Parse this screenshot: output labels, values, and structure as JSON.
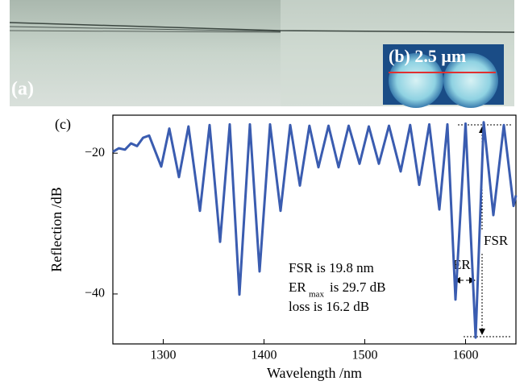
{
  "panels": {
    "a": "(a)",
    "b": "(b) 2.5 μm"
  },
  "chart_data": {
    "type": "line",
    "panel_label": "(c)",
    "x_label": "Wavelength /nm",
    "y_label": "Reflection /dB",
    "x": [
      1250,
      1256,
      1262,
      1268,
      1274,
      1280,
      1286,
      1298,
      1306,
      1315.6,
      1325,
      1336.4,
      1346,
      1356.4,
      1366,
      1375.6,
      1386,
      1395.6,
      1406,
      1416.4,
      1426,
      1435.6,
      1445,
      1454,
      1464,
      1474,
      1484,
      1494.8,
      1504,
      1514,
      1524,
      1535.6,
      1545,
      1554,
      1564,
      1574,
      1582,
      1590,
      1600,
      1610,
      1618,
      1627.6,
      1638,
      1647.6,
      1650
    ],
    "values": [
      -19.8,
      -19.3,
      -19.5,
      -18.6,
      -19.0,
      -17.8,
      -17.5,
      -21.9,
      -16.5,
      -23.4,
      -16.2,
      -28.2,
      -16.0,
      -32.6,
      -15.9,
      -40.1,
      -15.9,
      -36.8,
      -15.9,
      -28.2,
      -16.0,
      -24.6,
      -16.1,
      -22.0,
      -16.1,
      -22.0,
      -16.1,
      -21.5,
      -16.2,
      -21.5,
      -16.1,
      -22.6,
      -16.0,
      -24.5,
      -15.9,
      -28.0,
      -15.9,
      -40.8,
      -15.8,
      -46.2,
      -15.6,
      -28.8,
      -16.0,
      -27.5,
      -26.0
    ],
    "color": "#3a5cb0",
    "xlim": [
      1250,
      1650
    ],
    "xticks": [
      1300,
      1400,
      1500,
      1600
    ],
    "ylim": [
      -47.1,
      -14.6
    ],
    "yticks": [
      {
        "value": -20,
        "label": "−20"
      },
      {
        "value": -40,
        "label": "−40"
      }
    ],
    "annotations": {
      "fsr_text": "FSR is 19.8 nm",
      "er_text": "ER",
      "er_sub": "max",
      "er_rest": "is 29.7 dB",
      "loss_text": "loss is 16.2 dB",
      "fsr_label": "FSR",
      "er_label": "ER"
    }
  }
}
